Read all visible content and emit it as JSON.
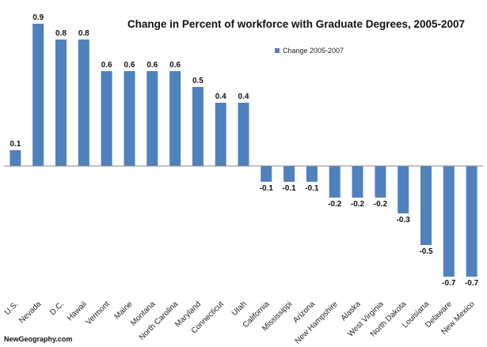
{
  "chart_data": {
    "type": "bar",
    "title": "Change in Percent of workforce with Graduate Degrees, 2005-2007",
    "xlabel": "",
    "ylabel": "",
    "categories": [
      "U.S.",
      "Nevada",
      "D.C.",
      "Hawaii",
      "Vermont",
      "Maine",
      "Montana",
      "North Carolina",
      "Maryland",
      "Connecticut",
      "Utah",
      "California",
      "Mississippi",
      "Arizona",
      "New Hampshire",
      "Alaska",
      "West Virginia",
      "North Dakota",
      "Louisiana",
      "Delaware",
      "New Mexico"
    ],
    "series": [
      {
        "name": "Change 2005-2007",
        "values": [
          0.1,
          0.9,
          0.8,
          0.8,
          0.6,
          0.6,
          0.6,
          0.6,
          0.5,
          0.4,
          0.4,
          -0.1,
          -0.1,
          -0.1,
          -0.2,
          -0.2,
          -0.2,
          -0.3,
          -0.5,
          -0.7,
          -0.7
        ]
      }
    ],
    "value_labels": [
      "0.1",
      "0.9",
      "0.8",
      "0.8",
      "0.6",
      "0.6",
      "0.6",
      "0.6",
      "0.5",
      "0.4",
      "0.4",
      "-0.1",
      "-0.1",
      "-0.1",
      "-0.2",
      "-0.2",
      "-0.2",
      "-0.3",
      "-0.5",
      "-0.7",
      "-0.7"
    ],
    "ylim": [
      -0.7,
      0.9
    ],
    "grid": false,
    "legend_position": "top-right",
    "bar_color": "#4f81bd"
  },
  "credit": "NewGeography.com"
}
